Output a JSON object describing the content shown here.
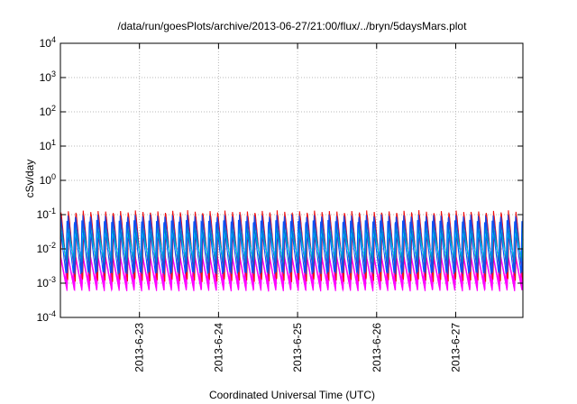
{
  "chart_data": {
    "type": "line",
    "title": "/data/run/goesPlots/archive/2013-06-27/21:00/flux/../bryn/5daysMars.plot",
    "xlabel": "Coordinated Universal Time (UTC)",
    "ylabel": "cSv/day",
    "yscale": "log",
    "ylim": [
      0.0001,
      10000
    ],
    "xlim": [
      0,
      5.85
    ],
    "grid": true,
    "x_ticks": [
      {
        "x": 1,
        "label": "2013-6-23"
      },
      {
        "x": 2,
        "label": "2013-6-24"
      },
      {
        "x": 3,
        "label": "2013-6-25"
      },
      {
        "x": 4,
        "label": "2013-6-26"
      },
      {
        "x": 5,
        "label": "2013-6-27"
      }
    ],
    "y_ticks": [
      {
        "y": 0.0001,
        "base": "10",
        "exp": "-4"
      },
      {
        "y": 0.001,
        "base": "10",
        "exp": "-3"
      },
      {
        "y": 0.01,
        "base": "10",
        "exp": "-2"
      },
      {
        "y": 0.1,
        "base": "10",
        "exp": "-1"
      },
      {
        "y": 1,
        "base": "10",
        "exp": "0"
      },
      {
        "y": 10,
        "base": "10",
        "exp": "1"
      },
      {
        "y": 100,
        "base": "10",
        "exp": "2"
      },
      {
        "y": 1000,
        "base": "10",
        "exp": "3"
      },
      {
        "y": 10000,
        "base": "10",
        "exp": "4"
      }
    ],
    "oscillation_cycles": 62,
    "series": [
      {
        "color": "#ff00ff",
        "peak": 0.008,
        "trough": 0.0008,
        "phase": 0.1,
        "stroke_count": 4
      },
      {
        "color": "#ee1111",
        "peak": 0.12,
        "trough": 0.0012,
        "phase": 0.0,
        "stroke_count": 2
      },
      {
        "color": "#2244dd",
        "peak": 0.09,
        "trough": 0.002,
        "phase": 0.05,
        "stroke_count": 2
      },
      {
        "color": "#00bb99",
        "peak": 0.05,
        "trough": 0.004,
        "phase": 0.15,
        "stroke_count": 1
      },
      {
        "color": "#00ccee",
        "peak": 0.03,
        "trough": 0.006,
        "phase": 0.2,
        "stroke_count": 1
      },
      {
        "color": "#0055ff",
        "peak": 0.07,
        "trough": 0.0018,
        "phase": 0.25,
        "stroke_count": 1
      }
    ]
  }
}
